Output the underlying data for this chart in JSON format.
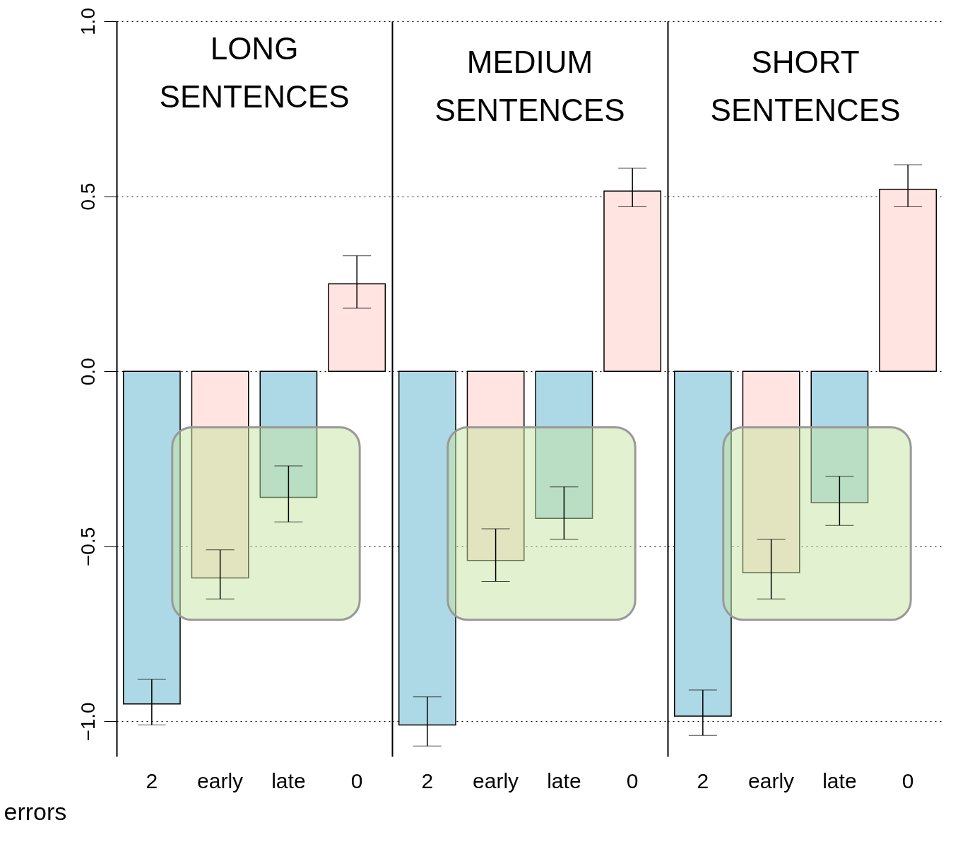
{
  "chart_data": [
    {
      "type": "bar",
      "title": "LONG SENTENCES",
      "xlabel": "errors",
      "categories": [
        "2",
        "early",
        "late",
        "0"
      ],
      "values": [
        -0.95,
        -0.59,
        -0.36,
        0.25
      ],
      "colors": [
        "#add8e6",
        "#ffe4e1",
        "#add8e6",
        "#ffe4e1"
      ],
      "errors": [
        [
          -1.01,
          -0.88
        ],
        [
          -0.65,
          -0.51
        ],
        [
          -0.43,
          -0.27
        ],
        [
          0.18,
          0.33
        ]
      ],
      "ylim": [
        -1.1,
        1.0
      ],
      "yticks": [
        {
          "value": -1.0,
          "label": "−1.0"
        },
        {
          "value": -0.5,
          "label": "−0.5"
        },
        {
          "value": 0.0,
          "label": "0.0"
        },
        {
          "value": 0.5,
          "label": "0.5"
        },
        {
          "value": 1.0,
          "label": "1.0"
        }
      ],
      "grid": "y"
    },
    {
      "type": "bar",
      "title": "MEDIUM SENTENCES",
      "categories": [
        "2",
        "early",
        "late",
        "0"
      ],
      "values": [
        -1.01,
        -0.54,
        -0.42,
        0.515
      ],
      "colors": [
        "#add8e6",
        "#ffe4e1",
        "#add8e6",
        "#ffe4e1"
      ],
      "errors": [
        [
          -1.07,
          -0.93
        ],
        [
          -0.6,
          -0.45
        ],
        [
          -0.48,
          -0.33
        ],
        [
          0.47,
          0.58
        ]
      ],
      "ylim": [
        -1.1,
        1.0
      ],
      "yticks": [
        -1.0,
        -0.5,
        0.0,
        0.5,
        1.0
      ],
      "grid": "y",
      "tick_labels": "x"
    },
    {
      "type": "bar",
      "title": "SHORT SENTENCES",
      "categories": [
        "2",
        "early",
        "late",
        "0"
      ],
      "values": [
        -0.985,
        -0.575,
        -0.375,
        0.52
      ],
      "colors": [
        "#add8e6",
        "#ffe4e1",
        "#add8e6",
        "#ffe4e1"
      ],
      "errors": [
        [
          -1.04,
          -0.91
        ],
        [
          -0.65,
          -0.48
        ],
        [
          -0.44,
          -0.3
        ],
        [
          0.47,
          0.59
        ]
      ],
      "ylim": [
        -1.1,
        1.0
      ],
      "yticks": [
        -1.0,
        -0.5,
        0.0,
        0.5,
        1.0
      ],
      "grid": "y",
      "tick_labels": "x"
    }
  ]
}
